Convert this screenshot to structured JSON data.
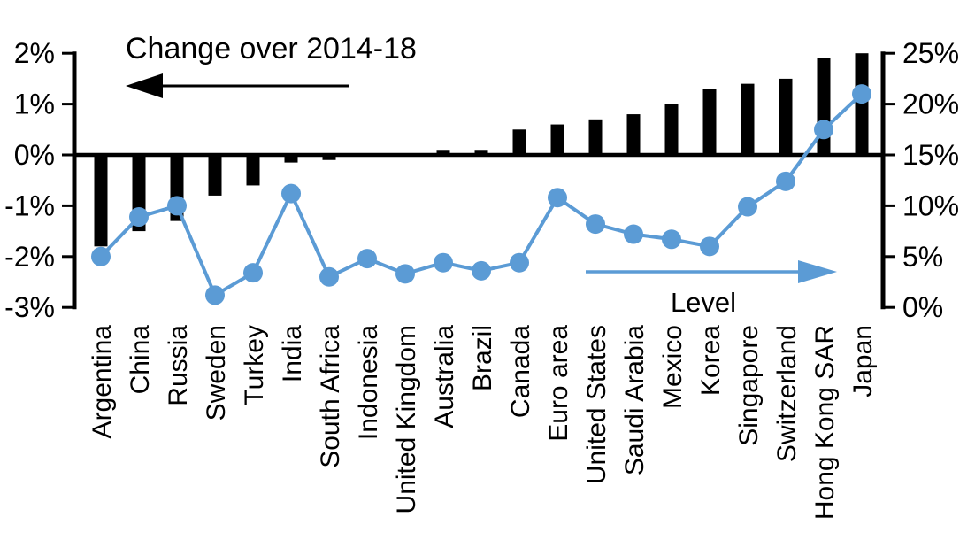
{
  "chart_data": {
    "type": "combo-bar-line",
    "categories": [
      "Argentina",
      "China",
      "Russia",
      "Sweden",
      "Turkey",
      "India",
      "South Africa",
      "Indonesia",
      "United Kingdom",
      "Australia",
      "Brazil",
      "Canada",
      "Euro area",
      "United States",
      "Saudi Arabia",
      "Mexico",
      "Korea",
      "Singapore",
      "Switzerland",
      "Hong Kong SAR",
      "Japan"
    ],
    "series": [
      {
        "name": "Change over 2014-18",
        "type": "bar",
        "axis": "left",
        "color": "#000000",
        "values": [
          -1.8,
          -1.5,
          -1.3,
          -0.8,
          -0.6,
          -0.15,
          -0.1,
          0,
          0,
          0.1,
          0.1,
          0.5,
          0.6,
          0.7,
          0.8,
          1.0,
          1.3,
          1.4,
          1.5,
          1.9,
          2.0
        ]
      },
      {
        "name": "Level",
        "type": "line",
        "axis": "right",
        "color": "#5B9BD5",
        "values": [
          5.0,
          8.9,
          10.0,
          1.2,
          3.4,
          11.2,
          3.0,
          4.8,
          3.3,
          4.4,
          3.6,
          4.4,
          10.8,
          8.2,
          7.2,
          6.7,
          6.0,
          9.9,
          12.4,
          17.5,
          21.0
        ]
      }
    ],
    "left_axis": {
      "tick_labels": [
        "2%",
        "1%",
        "0%",
        "-1%",
        "-2%",
        "-3%"
      ],
      "tick_values": [
        2,
        1,
        0,
        -1,
        -2,
        -3
      ],
      "min": -3,
      "max": 2
    },
    "right_axis": {
      "tick_labels": [
        "25%",
        "20%",
        "15%",
        "10%",
        "5%",
        "0%"
      ],
      "tick_values": [
        25,
        20,
        15,
        10,
        5,
        0
      ],
      "min": 0,
      "max": 25
    },
    "annotations": {
      "bar_series_label": "Change over 2014-18",
      "bar_arrow_direction": "left",
      "bar_arrow_color": "#000000",
      "line_series_label": "Level",
      "line_arrow_direction": "right",
      "line_arrow_color": "#5B9BD5"
    },
    "grid": false,
    "legend_position": "none"
  }
}
